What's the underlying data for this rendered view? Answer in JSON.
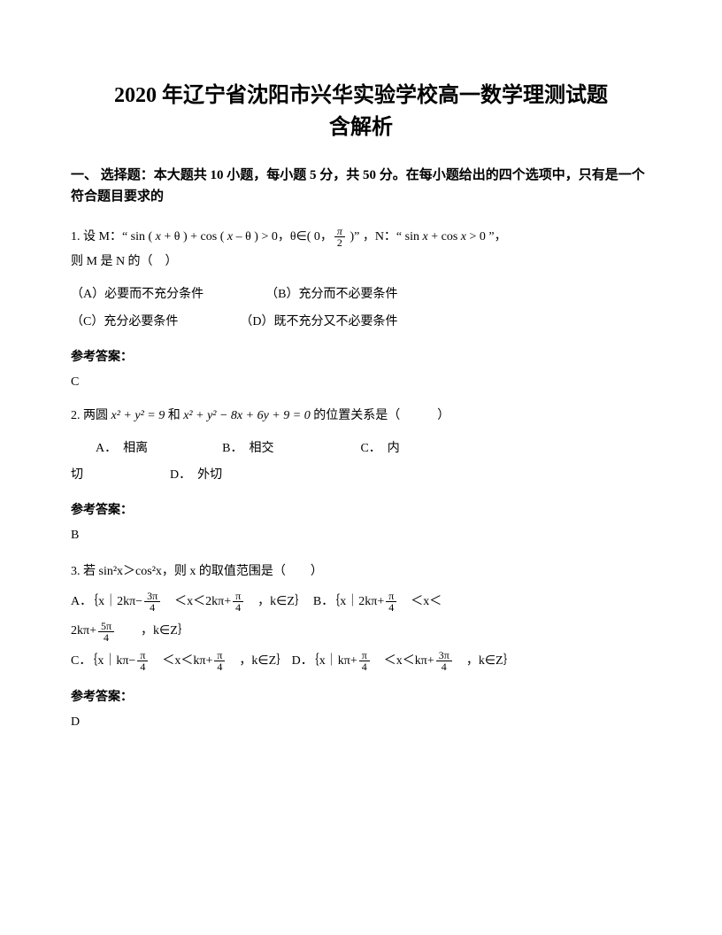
{
  "title_line1": "2020 年辽宁省沈阳市兴华实验学校高一数学理测试题",
  "title_line2": "含解析",
  "section_header": "一、 选择题：本大题共 10 小题，每小题 5 分，共 50 分。在每小题给出的四个选项中，只有是一个符合题目要求的",
  "q1": {
    "num": "1.",
    "prefix": "设 M：“ sin ( ",
    "x1": "x",
    "mid1": " + θ ) + cos ( ",
    "x2": "x",
    "mid2": " – θ ) > 0，θ∈( 0，",
    "frac_num": "π",
    "frac_den": "2",
    "mid3": " )” ，N：“ sin ",
    "x3": "x",
    "mid4": " + cos ",
    "x4": "x",
    "mid5": " > 0 ”，",
    "line2": "则 M 是 N 的（　）",
    "optA": "（A）必要而不充分条件",
    "optB": "（B）充分而不必要条件",
    "optC": "（C）充分必要条件",
    "optD": "（D）既不充分又不必要条件",
    "answer_label": "参考答案：",
    "answer": "C"
  },
  "q2": {
    "num": "2.",
    "prefix": "两圆 ",
    "eq1": "x² + y² = 9",
    "mid": " 和 ",
    "eq2": "x² + y² − 8x + 6y + 9 = 0",
    "suffix": " 的位置关系是（　　　）",
    "optA": "A．　相离",
    "optB": "B．　相交",
    "optC": "C．　内",
    "optC2": "切",
    "optD": "D．　外切",
    "answer_label": "参考答案：",
    "answer": "B"
  },
  "q3": {
    "num": "3.",
    "text": "若 sin²x＞cos²x，则 x 的取值范围是（　　）",
    "optA_pre": "A．｛x｜2kπ−",
    "optA_f1n": "3π",
    "optA_f1d": "4",
    "optA_mid1": "　＜x＜2kπ+",
    "optA_f2n": "π",
    "optA_f2d": "4",
    "optA_suf": "　，k∈Z｝",
    "optB_pre": "B．｛x｜2kπ+",
    "optB_f1n": "π",
    "optB_f1d": "4",
    "optB_mid": "　＜x＜",
    "line2_pre": "2kπ+",
    "line2_f1n": "5π",
    "line2_f1d": "4",
    "line2_suf": "　　，k∈Z｝",
    "optC_pre": "C．｛x｜kπ−",
    "optC_f1n": "π",
    "optC_f1d": "4",
    "optC_mid": "　＜x＜kπ+",
    "optC_f2n": "π",
    "optC_f2d": "4",
    "optC_suf": "　，k∈Z｝",
    "optD_pre": "D．｛x｜kπ+",
    "optD_f1n": "π",
    "optD_f1d": "4",
    "optD_mid": "　＜x＜kπ+",
    "optD_f2n": "3π",
    "optD_f2d": "4",
    "optD_suf": "　，k∈Z｝",
    "answer_label": "参考答案：",
    "answer": "D"
  }
}
